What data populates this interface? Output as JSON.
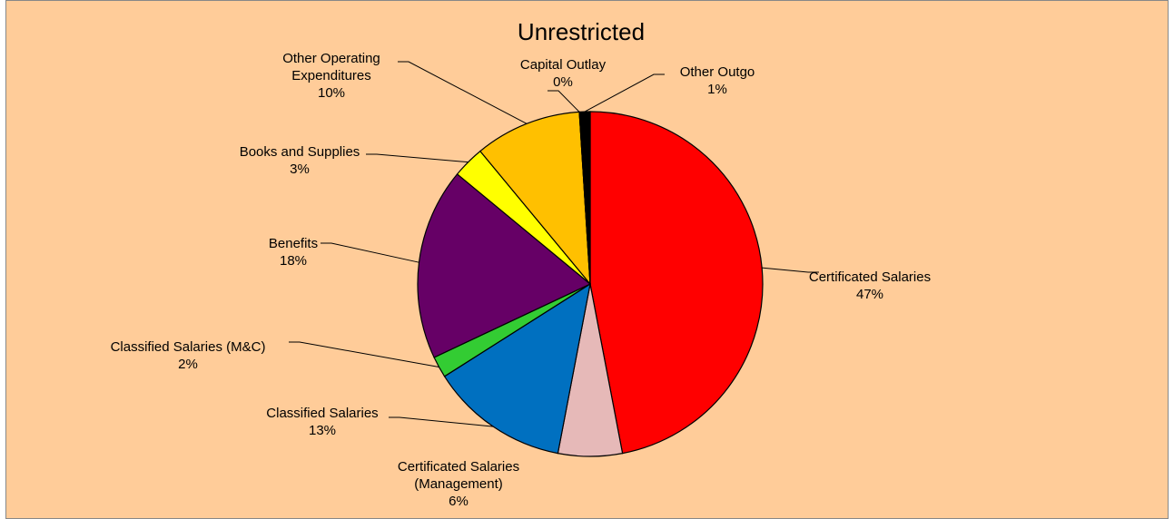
{
  "chart_data": {
    "type": "pie",
    "title": "Unrestricted",
    "categories": [
      "Certificated Salaries",
      "Certificated Salaries (Management)",
      "Classified Salaries",
      "Classified Salaries (M&C)",
      "Benefits",
      "Books and Supplies",
      "Other Operating Expenditures",
      "Capital Outlay",
      "Other Outgo"
    ],
    "values": [
      47,
      6,
      13,
      2,
      18,
      3,
      10,
      0,
      1
    ],
    "value_labels": [
      "47%",
      "6%",
      "13%",
      "2%",
      "18%",
      "3%",
      "10%",
      "0%",
      "1%"
    ],
    "colors": [
      "#ff0000",
      "#e6b9b8",
      "#0070c0",
      "#33cc33",
      "#660066",
      "#ffff00",
      "#ffc000",
      "#ffffff",
      "#000000"
    ]
  }
}
